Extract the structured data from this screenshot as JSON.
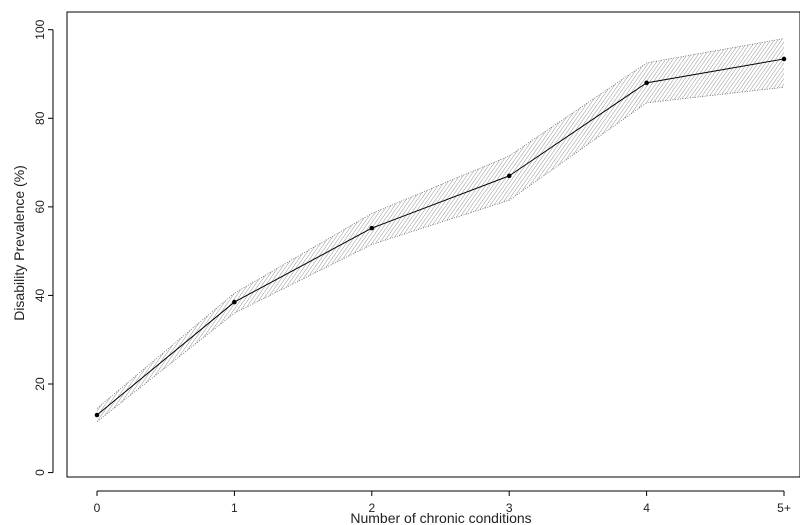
{
  "chart_data": {
    "type": "line",
    "title": "",
    "xlabel": "Number of chronic conditions",
    "ylabel": "Disability Prevalence (%)",
    "categories": [
      "0",
      "1",
      "2",
      "3",
      "4",
      "5+"
    ],
    "series": [
      {
        "values": [
          13,
          38.5,
          55.2,
          67,
          88,
          93.4
        ],
        "lower": [
          11.5,
          36,
          51.5,
          61.5,
          83.5,
          87
        ],
        "upper": [
          14.5,
          40.5,
          58.5,
          71.5,
          92.5,
          98
        ]
      }
    ],
    "yticks": [
      0,
      20,
      40,
      60,
      80,
      100
    ],
    "ylim": [
      -1,
      104
    ],
    "grid": false,
    "legend": "none",
    "colors": {
      "line": "#000000",
      "band_hatch": "#7a7a7a",
      "band_edge": "#555555"
    }
  }
}
